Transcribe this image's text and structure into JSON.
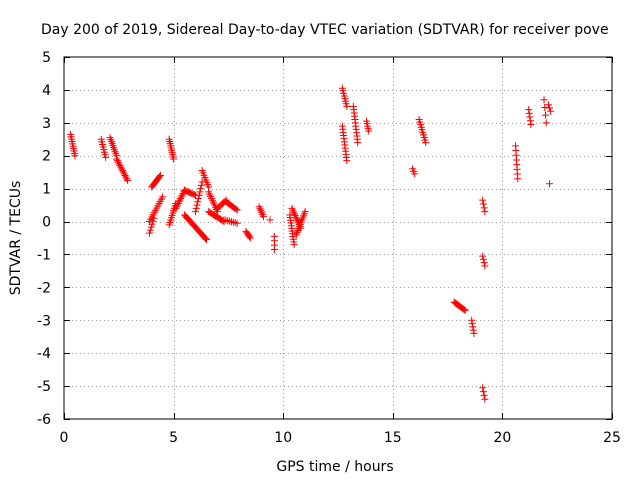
{
  "chart_data": {
    "type": "scatter",
    "title": "Day 200 of 2019, Sidereal Day-to-day VTEC variation (SDTVAR) for receiver pove",
    "xlabel": "GPS time / hours",
    "ylabel": "SDTVAR / TECUs",
    "xlim": [
      0,
      25
    ],
    "ylim": [
      -6,
      5
    ],
    "xticks": [
      0,
      5,
      10,
      15,
      20,
      25
    ],
    "yticks": [
      -6,
      -5,
      -4,
      -3,
      -2,
      -1,
      0,
      1,
      2,
      3,
      4,
      5
    ],
    "grid": true,
    "marker": "+",
    "color": "#ff0000",
    "segments": [
      {
        "x0": 0.3,
        "y0": 2.65,
        "x1": 0.5,
        "y1": 2.0,
        "n": 10
      },
      {
        "x0": 1.7,
        "y0": 2.5,
        "x1": 1.9,
        "y1": 1.95,
        "n": 8
      },
      {
        "x0": 2.1,
        "y0": 2.55,
        "x1": 2.4,
        "y1": 2.0,
        "n": 10
      },
      {
        "x0": 2.4,
        "y0": 1.9,
        "x1": 2.9,
        "y1": 1.25,
        "n": 14
      },
      {
        "x0": 3.9,
        "y0": 0.0,
        "x1": 4.5,
        "y1": 0.75,
        "n": 12
      },
      {
        "x0": 3.9,
        "y0": -0.35,
        "x1": 4.1,
        "y1": 0.1,
        "n": 6
      },
      {
        "x0": 4.0,
        "y0": 1.05,
        "x1": 4.4,
        "y1": 1.4,
        "n": 10
      },
      {
        "x0": 4.8,
        "y0": 2.5,
        "x1": 5.0,
        "y1": 1.9,
        "n": 10
      },
      {
        "x0": 4.8,
        "y0": -0.1,
        "x1": 5.1,
        "y1": 0.55,
        "n": 10
      },
      {
        "x0": 5.1,
        "y0": 0.4,
        "x1": 5.5,
        "y1": 0.95,
        "n": 12
      },
      {
        "x0": 5.5,
        "y0": 0.95,
        "x1": 6.0,
        "y1": 0.8,
        "n": 10
      },
      {
        "x0": 5.5,
        "y0": 0.2,
        "x1": 6.5,
        "y1": -0.55,
        "n": 22
      },
      {
        "x0": 6.0,
        "y0": 0.3,
        "x1": 6.3,
        "y1": 1.2,
        "n": 10
      },
      {
        "x0": 6.3,
        "y0": 1.55,
        "x1": 6.6,
        "y1": 1.05,
        "n": 8
      },
      {
        "x0": 6.6,
        "y0": 0.9,
        "x1": 7.0,
        "y1": 0.3,
        "n": 10
      },
      {
        "x0": 6.6,
        "y0": 0.3,
        "x1": 7.3,
        "y1": 0.0,
        "n": 14
      },
      {
        "x0": 7.0,
        "y0": 0.4,
        "x1": 7.4,
        "y1": 0.65,
        "n": 8
      },
      {
        "x0": 7.4,
        "y0": 0.6,
        "x1": 7.9,
        "y1": 0.35,
        "n": 10
      },
      {
        "x0": 7.3,
        "y0": 0.05,
        "x1": 7.9,
        "y1": -0.05,
        "n": 8
      },
      {
        "x0": 8.3,
        "y0": -0.3,
        "x1": 8.5,
        "y1": -0.5,
        "n": 6
      },
      {
        "x0": 8.9,
        "y0": 0.45,
        "x1": 9.1,
        "y1": 0.15,
        "n": 6
      },
      {
        "x0": 9.4,
        "y0": 0.05,
        "x1": 9.4,
        "y1": 0.05,
        "n": 1
      },
      {
        "x0": 9.6,
        "y0": -0.45,
        "x1": 9.6,
        "y1": -0.85,
        "n": 4
      },
      {
        "x0": 10.3,
        "y0": 0.2,
        "x1": 10.5,
        "y1": -0.7,
        "n": 12
      },
      {
        "x0": 10.4,
        "y0": 0.4,
        "x1": 10.8,
        "y1": -0.2,
        "n": 12
      },
      {
        "x0": 10.6,
        "y0": -0.4,
        "x1": 11.0,
        "y1": 0.3,
        "n": 12
      },
      {
        "x0": 12.7,
        "y0": 4.05,
        "x1": 12.9,
        "y1": 3.5,
        "n": 8
      },
      {
        "x0": 12.7,
        "y0": 2.9,
        "x1": 12.9,
        "y1": 1.85,
        "n": 12
      },
      {
        "x0": 13.2,
        "y0": 3.5,
        "x1": 13.4,
        "y1": 2.4,
        "n": 12
      },
      {
        "x0": 13.8,
        "y0": 3.05,
        "x1": 13.9,
        "y1": 2.75,
        "n": 5
      },
      {
        "x0": 15.9,
        "y0": 1.6,
        "x1": 16.0,
        "y1": 1.45,
        "n": 3
      },
      {
        "x0": 16.2,
        "y0": 3.1,
        "x1": 16.5,
        "y1": 2.4,
        "n": 10
      },
      {
        "x0": 17.8,
        "y0": -2.45,
        "x1": 18.3,
        "y1": -2.7,
        "n": 12
      },
      {
        "x0": 18.6,
        "y0": -3.0,
        "x1": 18.7,
        "y1": -3.4,
        "n": 5
      },
      {
        "x0": 19.1,
        "y0": 0.65,
        "x1": 19.2,
        "y1": 0.3,
        "n": 4
      },
      {
        "x0": 19.1,
        "y0": -1.05,
        "x1": 19.2,
        "y1": -1.35,
        "n": 4
      },
      {
        "x0": 19.1,
        "y0": -5.05,
        "x1": 19.2,
        "y1": -5.4,
        "n": 4
      },
      {
        "x0": 20.6,
        "y0": 2.3,
        "x1": 20.7,
        "y1": 1.3,
        "n": 8
      },
      {
        "x0": 21.2,
        "y0": 3.4,
        "x1": 21.3,
        "y1": 2.95,
        "n": 5
      },
      {
        "x0": 21.9,
        "y0": 3.7,
        "x1": 22.0,
        "y1": 3.0,
        "n": 4
      },
      {
        "x0": 22.1,
        "y0": 3.55,
        "x1": 22.2,
        "y1": 3.35,
        "n": 3
      },
      {
        "x0": 22.15,
        "y0": 1.15,
        "x1": 22.15,
        "y1": 1.15,
        "n": 1
      }
    ]
  }
}
